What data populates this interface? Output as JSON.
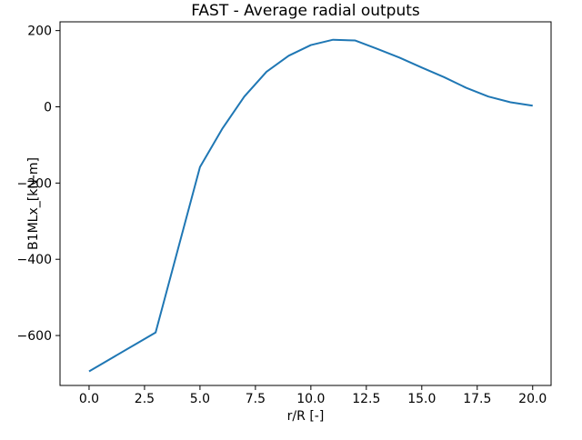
{
  "chart_data": {
    "type": "line",
    "title": "FAST - Average radial outputs",
    "xlabel": "r/R [-]",
    "ylabel": "B1MLx_[kN-m]",
    "grid": false,
    "legend": "none",
    "background_color": "#ffffff",
    "spine_color": "#000000",
    "xlim": [
      -1.31,
      20.83
    ],
    "ylim": [
      -731,
      223
    ],
    "xticks": {
      "values": [
        0,
        2.5,
        5,
        7.5,
        10,
        12.5,
        15,
        17.5,
        20
      ],
      "labels": [
        "0.0",
        "2.5",
        "5.0",
        "7.5",
        "10.0",
        "12.5",
        "15.0",
        "17.5",
        "20.0"
      ]
    },
    "yticks": {
      "values": [
        200,
        0,
        -200,
        -400,
        -600
      ],
      "labels": [
        "200",
        "0",
        "−200",
        "−400",
        "−600"
      ]
    },
    "series": [
      {
        "name": "B1MLx_",
        "color": "#1f77b4",
        "x": [
          0,
          1,
          2,
          3,
          4,
          5,
          6,
          7,
          8,
          9,
          10,
          11,
          12,
          13,
          14,
          15,
          16,
          17,
          18,
          19,
          20
        ],
        "y": [
          -694,
          -660,
          -626,
          -592,
          -375,
          -158,
          -58,
          27,
          92,
          134,
          162,
          176,
          174,
          152,
          129,
          103,
          78,
          50,
          27,
          12,
          3
        ]
      }
    ]
  }
}
